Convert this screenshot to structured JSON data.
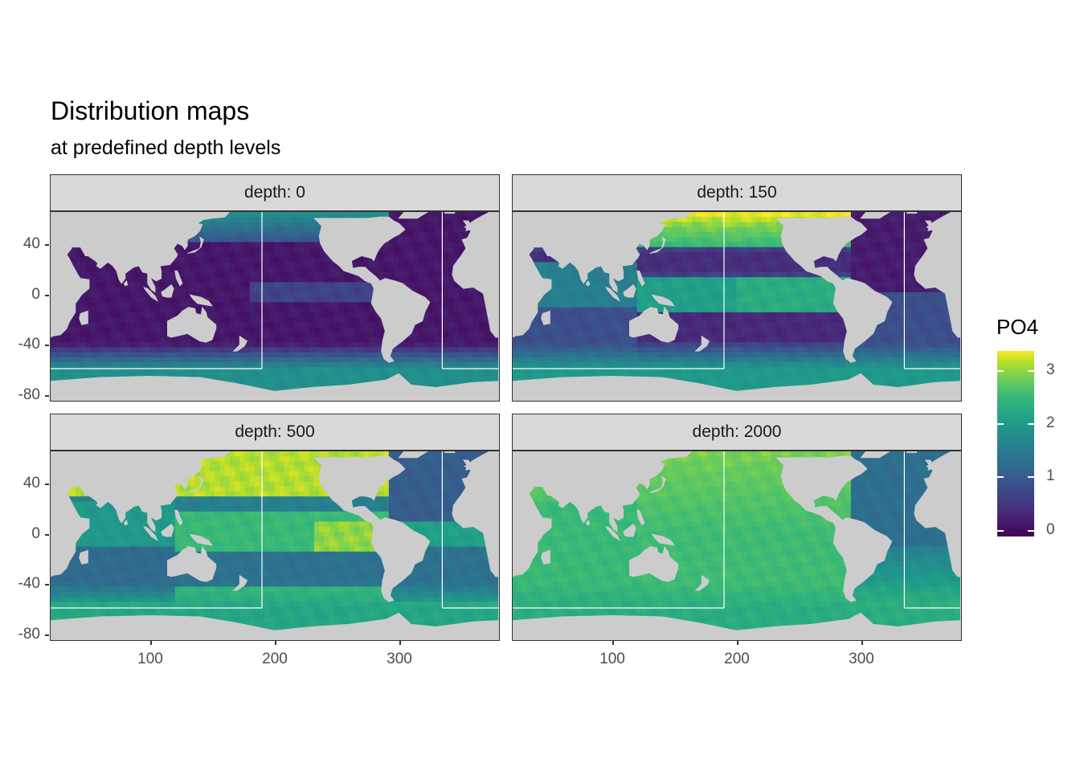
{
  "chart_data": {
    "type": "heatmap",
    "title": "Distribution maps",
    "subtitle": "at predefined depth levels",
    "facet_label_prefix": "depth: ",
    "facets": [
      {
        "depth": "0",
        "label": "depth: 0"
      },
      {
        "depth": "150",
        "label": "depth: 150"
      },
      {
        "depth": "500",
        "label": "depth: 500"
      },
      {
        "depth": "2000",
        "label": "depth: 2000"
      }
    ],
    "x_ticks": [
      "100",
      "200",
      "300"
    ],
    "x_tick_values": [
      100,
      200,
      300
    ],
    "xlim": [
      20,
      380
    ],
    "y_ticks": [
      "40",
      "0",
      "-40",
      "-80"
    ],
    "y_tick_values": [
      40,
      0,
      -40,
      -80
    ],
    "ylim": [
      -85,
      65
    ],
    "legend": {
      "title": "PO4",
      "ticks": [
        "3",
        "2",
        "1",
        "0"
      ],
      "tick_values": [
        3,
        2,
        1,
        0
      ],
      "range": [
        0,
        3.3
      ],
      "colormap": "viridis",
      "placement": "right"
    },
    "land_color": "#cccccc",
    "box_color": "#ffffff",
    "typical_values": {
      "0": {
        "subtropical": 0.2,
        "equatorial_pacific": 0.8,
        "southern_ocean": 1.8
      },
      "150": {
        "subtropical": 0.3,
        "north_pacific": 3.0,
        "equatorial_pacific": 2.3,
        "southern_ocean": 2.0
      },
      "500": {
        "north_atlantic": 1.1,
        "north_pacific": 3.2,
        "indian": 2.0,
        "southern_ocean": 2.2
      },
      "2000": {
        "atlantic": 1.4,
        "pacific": 2.7,
        "indian": 2.5,
        "southern_ocean": 2.3
      }
    }
  }
}
